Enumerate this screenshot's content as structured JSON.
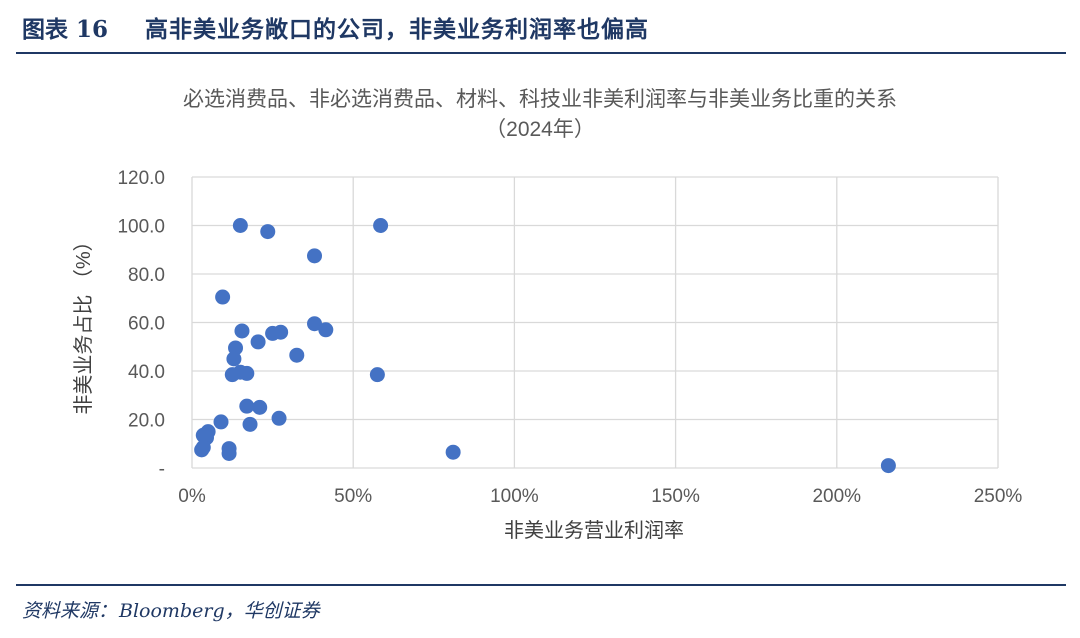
{
  "header": {
    "figure_number": "图表 16",
    "title": "高非美业务敞口的公司，非美业务利润率也偏高"
  },
  "source": {
    "label": "资料来源：",
    "text": "Bloomberg，华创证券"
  },
  "chart_data": {
    "type": "scatter",
    "title": "必选消费品、非必选消费品、材料、科技业非美利润率与非美业务比重的关系",
    "subtitle": "（2024年）",
    "xlabel": "非美业务营业利润率",
    "ylabel": "非美业务占比 （%）",
    "xlim": [
      0,
      2.5
    ],
    "ylim": [
      0,
      120
    ],
    "x_ticks": [
      {
        "value": 0,
        "label": "0%"
      },
      {
        "value": 0.5,
        "label": "50%"
      },
      {
        "value": 1.0,
        "label": "100%"
      },
      {
        "value": 1.5,
        "label": "150%"
      },
      {
        "value": 2.0,
        "label": "200%"
      },
      {
        "value": 2.5,
        "label": "250%"
      }
    ],
    "y_ticks": [
      {
        "value": 0,
        "label": "-"
      },
      {
        "value": 20,
        "label": "20.0"
      },
      {
        "value": 40,
        "label": "40.0"
      },
      {
        "value": 60,
        "label": "60.0"
      },
      {
        "value": 80,
        "label": "80.0"
      },
      {
        "value": 100,
        "label": "100.0"
      },
      {
        "value": 120,
        "label": "120.0"
      }
    ],
    "grid": true,
    "marker_color": "#4472c4",
    "points": [
      {
        "x": 0.15,
        "y": 100
      },
      {
        "x": 0.235,
        "y": 97.5
      },
      {
        "x": 0.585,
        "y": 100
      },
      {
        "x": 0.38,
        "y": 87.5
      },
      {
        "x": 0.095,
        "y": 70.5
      },
      {
        "x": 0.155,
        "y": 56.5
      },
      {
        "x": 0.25,
        "y": 55.5
      },
      {
        "x": 0.275,
        "y": 56
      },
      {
        "x": 0.38,
        "y": 59.5
      },
      {
        "x": 0.415,
        "y": 57
      },
      {
        "x": 0.205,
        "y": 52
      },
      {
        "x": 0.135,
        "y": 49.5
      },
      {
        "x": 0.325,
        "y": 46.5
      },
      {
        "x": 0.13,
        "y": 45
      },
      {
        "x": 0.125,
        "y": 38.5
      },
      {
        "x": 0.15,
        "y": 39.5
      },
      {
        "x": 0.17,
        "y": 39
      },
      {
        "x": 0.575,
        "y": 38.5
      },
      {
        "x": 0.17,
        "y": 25.5
      },
      {
        "x": 0.21,
        "y": 25
      },
      {
        "x": 0.27,
        "y": 20.5
      },
      {
        "x": 0.18,
        "y": 18
      },
      {
        "x": 0.09,
        "y": 19
      },
      {
        "x": 0.05,
        "y": 15
      },
      {
        "x": 0.045,
        "y": 12.5
      },
      {
        "x": 0.035,
        "y": 13.5
      },
      {
        "x": 0.115,
        "y": 8
      },
      {
        "x": 0.115,
        "y": 6
      },
      {
        "x": 0.03,
        "y": 7.5
      },
      {
        "x": 0.035,
        "y": 8.5
      },
      {
        "x": 0.81,
        "y": 6.5
      },
      {
        "x": 2.16,
        "y": 1
      }
    ]
  }
}
